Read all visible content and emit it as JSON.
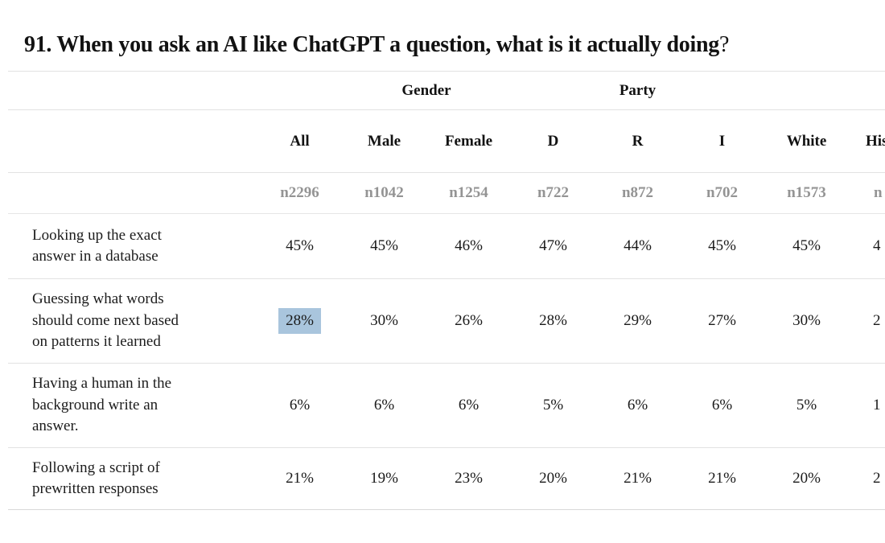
{
  "title": {
    "text": "91. When you ask an AI like ChatGPT a question, what is it actually doing",
    "question_mark": "?"
  },
  "table": {
    "group_headers": {
      "gender": "Gender",
      "party": "Party"
    },
    "columns": [
      "All",
      "Male",
      "Female",
      "D",
      "R",
      "I",
      "White",
      "His"
    ],
    "sample_sizes": [
      "n2296",
      "n1042",
      "n1254",
      "n722",
      "n872",
      "n702",
      "n1573",
      "n"
    ],
    "rows": [
      {
        "label": "Looking up the exact answer in a database",
        "lines": [
          "Looking up the exact",
          "answer in a database"
        ],
        "values": [
          "45%",
          "45%",
          "46%",
          "47%",
          "44%",
          "45%",
          "45%",
          "4"
        ]
      },
      {
        "label": "Guessing what words should come next based on patterns it learned",
        "lines": [
          "Guessing what words",
          "should come next based",
          "on patterns it learned"
        ],
        "values": [
          "28%",
          "30%",
          "26%",
          "28%",
          "29%",
          "27%",
          "30%",
          "2"
        ],
        "highlighted_value_index": 0
      },
      {
        "label": "Having a human in the background write an answer.",
        "lines": [
          "Having a human in the",
          "background write an",
          "answer."
        ],
        "values": [
          "6%",
          "6%",
          "6%",
          "5%",
          "6%",
          "6%",
          "5%",
          "1"
        ]
      },
      {
        "label": "Following a script of prewritten responses",
        "lines": [
          "Following a script of",
          "prewritten responses"
        ],
        "values": [
          "21%",
          "19%",
          "23%",
          "20%",
          "21%",
          "21%",
          "20%",
          "2"
        ]
      }
    ],
    "highlight_color": "#a9c5dd"
  },
  "chart_data": {
    "type": "table",
    "title": "91. When you ask an AI like ChatGPT a question, what is it actually doing?",
    "categories": [
      "All",
      "Male",
      "Female",
      "D",
      "R",
      "I",
      "White",
      "His"
    ],
    "column_groups": [
      {
        "label": "Gender",
        "columns": [
          "Male",
          "Female"
        ]
      },
      {
        "label": "Party",
        "columns": [
          "D",
          "R",
          "I"
        ]
      }
    ],
    "sample_sizes": [
      2296,
      1042,
      1254,
      722,
      872,
      702,
      1573,
      null
    ],
    "series": [
      {
        "name": "Looking up the exact answer in a database",
        "values": [
          45,
          45,
          46,
          47,
          44,
          45,
          45,
          null
        ]
      },
      {
        "name": "Guessing what words should come next based on patterns it learned",
        "values": [
          28,
          30,
          26,
          28,
          29,
          27,
          30,
          null
        ]
      },
      {
        "name": "Having a human in the background write an answer.",
        "values": [
          6,
          6,
          6,
          5,
          6,
          6,
          5,
          null
        ]
      },
      {
        "name": "Following a script of prewritten responses",
        "values": [
          21,
          19,
          23,
          20,
          21,
          21,
          20,
          null
        ]
      }
    ],
    "highlight": {
      "row": "Guessing what words should come next based on patterns it learned",
      "column": "All",
      "value": 28
    },
    "notes": "Rightmost column (His...) and its values are cut off at the image edge"
  }
}
